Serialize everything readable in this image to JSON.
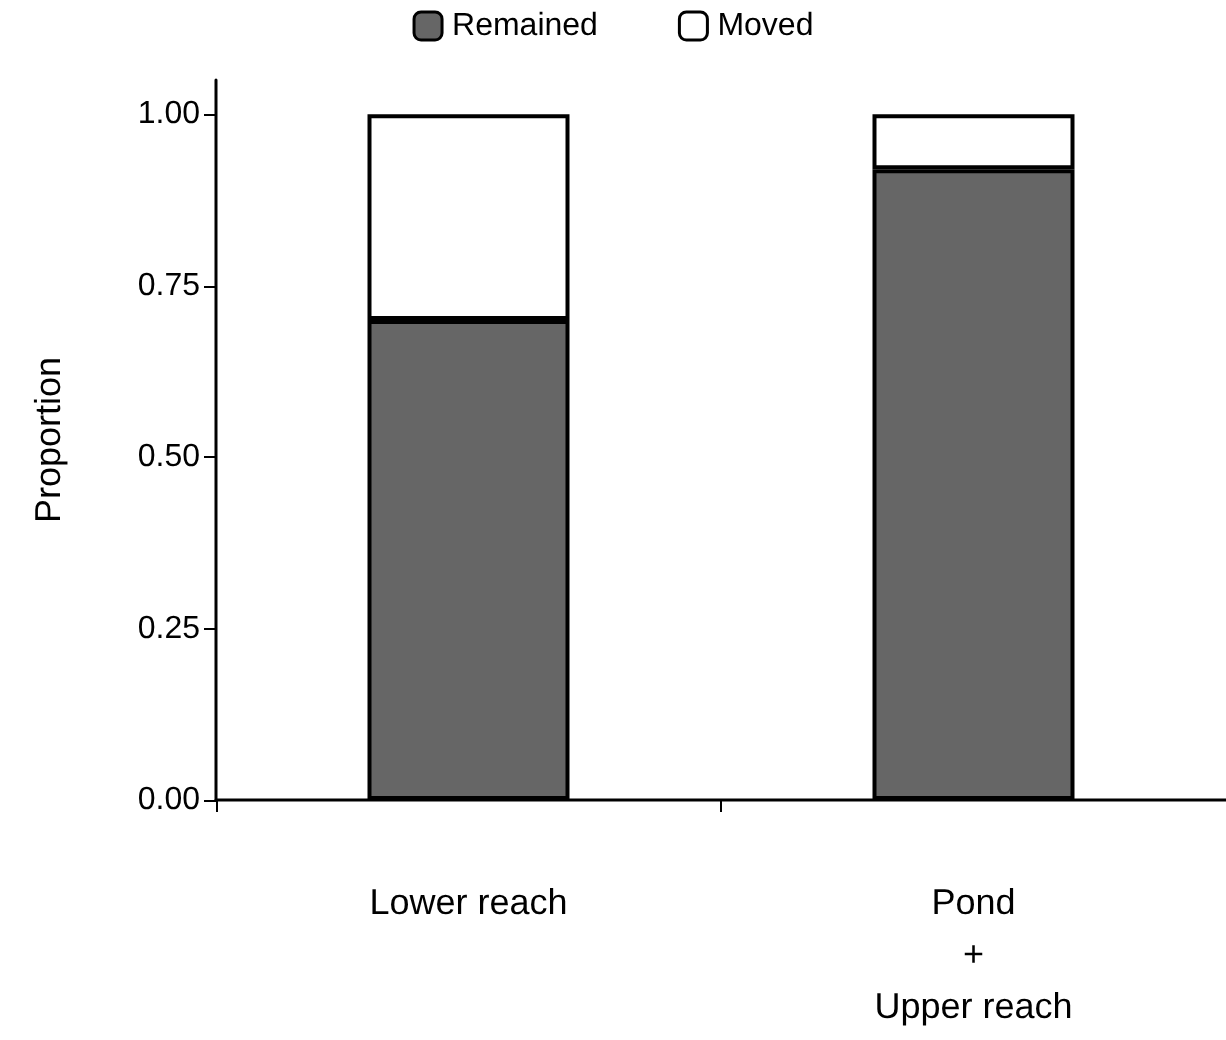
{
  "chart_data": {
    "type": "bar",
    "stacked": true,
    "ylabel": "Proportion",
    "categories": [
      "Lower reach",
      "Pond\n+\nUpper reach"
    ],
    "series": [
      {
        "name": "Remained",
        "color": "#666666",
        "values": [
          0.7,
          0.92
        ]
      },
      {
        "name": "Moved",
        "color": "#ffffff",
        "values": [
          0.3,
          0.08
        ]
      }
    ],
    "ylim": [
      0,
      1.05
    ],
    "yticks": [
      {
        "value": 0,
        "label": "0.00"
      },
      {
        "value": 0.25,
        "label": "0.25"
      },
      {
        "value": 0.5,
        "label": "0.50"
      },
      {
        "value": 0.75,
        "label": "0.75"
      },
      {
        "value": 1,
        "label": "1.00"
      }
    ],
    "grid": false,
    "legend": "top"
  }
}
